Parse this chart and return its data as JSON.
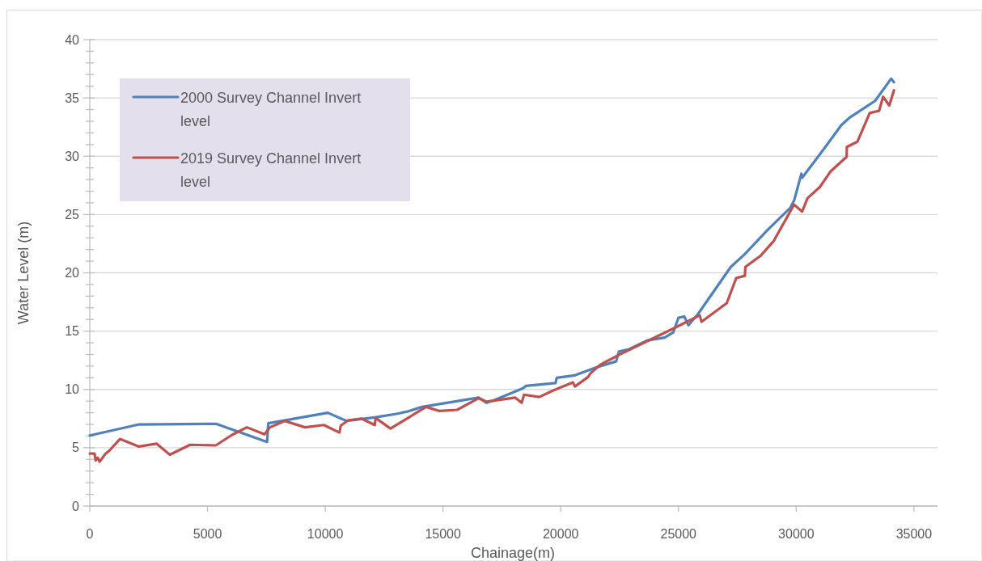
{
  "chart_data": {
    "type": "line",
    "xlabel": "Chainage(m)",
    "ylabel": "Water Level (m)",
    "xlim": [
      0,
      36000
    ],
    "xticks": [
      0,
      5000,
      10000,
      15000,
      20000,
      25000,
      30000,
      35000
    ],
    "ylim": [
      0,
      40
    ],
    "yticks": [
      0,
      {
        "value": 1,
        "label": null
      },
      {
        "value": 2,
        "label": null
      },
      {
        "value": 3,
        "label": null
      },
      {
        "value": 4,
        "label": null
      },
      5,
      {
        "value": 6,
        "label": null
      },
      {
        "value": 7,
        "label": null
      },
      {
        "value": 8,
        "label": null
      },
      {
        "value": 9,
        "label": null
      },
      10,
      {
        "value": 11,
        "label": null
      },
      {
        "value": 12,
        "label": null
      },
      {
        "value": 13,
        "label": null
      },
      {
        "value": 14,
        "label": null
      },
      15,
      {
        "value": 16,
        "label": null
      },
      {
        "value": 17,
        "label": null
      },
      {
        "value": 18,
        "label": null
      },
      {
        "value": 19,
        "label": null
      },
      20,
      {
        "value": 21,
        "label": null
      },
      {
        "value": 22,
        "label": null
      },
      {
        "value": 23,
        "label": null
      },
      {
        "value": 24,
        "label": null
      },
      25,
      {
        "value": 26,
        "label": null
      },
      {
        "value": 27,
        "label": null
      },
      {
        "value": 28,
        "label": null
      },
      {
        "value": 29,
        "label": null
      },
      30,
      {
        "value": 31,
        "label": null
      },
      {
        "value": 32,
        "label": null
      },
      {
        "value": 33,
        "label": null
      },
      {
        "value": 34,
        "label": null
      },
      35,
      {
        "value": 36,
        "label": null
      },
      {
        "value": 37,
        "label": null
      },
      {
        "value": 38,
        "label": null
      },
      {
        "value": 39,
        "label": null
      },
      40
    ],
    "grid": "y",
    "legend": "top left",
    "series": [
      {
        "name": "2000 Survey Channel Invert level",
        "color": "#4f81bd",
        "x": [
          0,
          2090,
          5360,
          7530,
          7580,
          10110,
          10900,
          12100,
          13020,
          13480,
          14110,
          16510,
          16850,
          17140,
          18400,
          18520,
          19780,
          19830,
          20580,
          21600,
          22350,
          22470,
          22900,
          23670,
          24410,
          24780,
          25000,
          25250,
          25420,
          25840,
          27220,
          27790,
          28820,
          29740,
          29910,
          30220,
          30250,
          31110,
          31910,
          32260,
          33350,
          34030,
          34150
        ],
        "values": [
          6.05,
          7.0,
          7.05,
          5.5,
          7.1,
          8.0,
          7.3,
          7.6,
          7.9,
          8.1,
          8.5,
          9.3,
          8.85,
          9.05,
          10.1,
          10.3,
          10.55,
          11.0,
          11.2,
          11.95,
          12.4,
          13.25,
          13.45,
          14.2,
          14.45,
          14.9,
          16.15,
          16.25,
          15.5,
          16.5,
          20.5,
          21.55,
          23.75,
          25.55,
          26.2,
          28.5,
          28.15,
          30.45,
          32.65,
          33.3,
          34.75,
          36.65,
          36.35
        ]
      },
      {
        "name": "2019 Survey Channel Invert level",
        "color": "#c0504d",
        "x": [
          0,
          200,
          250,
          330,
          420,
          650,
          830,
          1280,
          2090,
          2830,
          3400,
          4260,
          5350,
          6040,
          6670,
          7420,
          7650,
          8280,
          9140,
          9940,
          10600,
          10660,
          10970,
          11530,
          12100,
          12140,
          12770,
          14280,
          14850,
          15600,
          16510,
          16850,
          18060,
          18340,
          18440,
          19090,
          19660,
          20520,
          20600,
          21150,
          21270,
          21670,
          22410,
          24810,
          25900,
          25980,
          27050,
          27450,
          27820,
          27840,
          28480,
          29050,
          29910,
          30250,
          30480,
          31000,
          31460,
          32140,
          32150,
          32600,
          33120,
          33520,
          33690,
          33950,
          34150
        ],
        "values": [
          4.5,
          4.5,
          3.9,
          4.15,
          3.8,
          4.45,
          4.75,
          5.75,
          5.1,
          5.35,
          4.4,
          5.25,
          5.2,
          6.1,
          6.75,
          6.15,
          6.75,
          7.3,
          6.75,
          6.95,
          6.3,
          6.9,
          7.35,
          7.5,
          6.95,
          7.55,
          6.65,
          8.5,
          8.15,
          8.25,
          9.25,
          8.95,
          9.3,
          8.85,
          9.55,
          9.35,
          9.9,
          10.6,
          10.25,
          11.05,
          11.4,
          12.1,
          12.9,
          15.25,
          16.35,
          15.8,
          17.4,
          19.55,
          19.75,
          20.5,
          21.45,
          22.75,
          25.85,
          25.25,
          26.4,
          27.35,
          28.7,
          29.95,
          30.8,
          31.25,
          33.7,
          33.9,
          35.1,
          34.35,
          35.65
        ]
      }
    ]
  }
}
